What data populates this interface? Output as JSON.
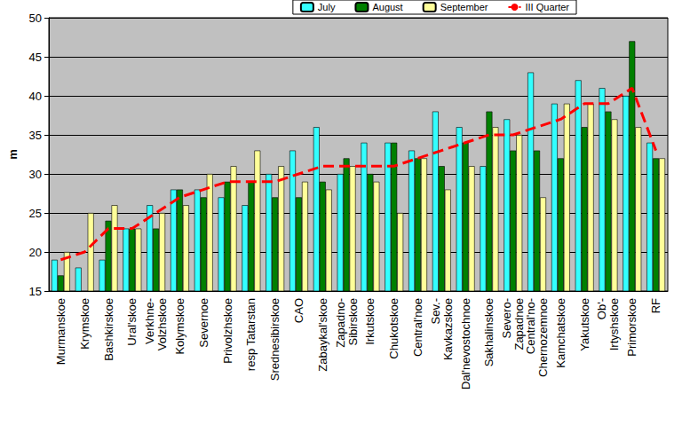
{
  "chart_data": {
    "type": "bar",
    "y_label": "m",
    "categories": [
      "Murmanskoe",
      "Krymskoe",
      "Bashkirskoe",
      "Ural'skoe",
      "Verkhne-\nVolzhskoe",
      "Kolymskoe",
      "Severnoe",
      "Privolzhskoe",
      "resp Tatarstan",
      "Srednesibirskoe",
      "CAO",
      "Zabaykal'skoe",
      "Zapadno-\nSibirskoe",
      "Irkutskoe",
      "Chukotskoe",
      "Central'noe",
      "Sev.-\nKavkazskoe",
      "Dal'nevostochnoe",
      "Sakhalinskoe",
      "Severo-\nZapadnoe",
      "Central'no-\nChernozemnoe",
      "Kamchatskoe",
      "Yakutskoe",
      "Ob'-\nIrtyshskoe",
      "Primorskoe",
      "RF"
    ],
    "series": [
      {
        "name": "July",
        "type": "bar",
        "color": "#33ffff",
        "values": [
          19,
          18,
          19,
          23,
          26,
          28,
          28,
          27,
          26,
          30,
          33,
          36,
          30,
          34,
          34,
          33,
          38,
          36,
          31,
          37,
          43,
          39,
          42,
          41,
          40,
          34
        ]
      },
      {
        "name": "August",
        "type": "bar",
        "color": "#008000",
        "values": [
          17,
          null,
          24,
          23,
          23,
          28,
          27,
          29,
          29,
          27,
          27,
          29,
          32,
          30,
          34,
          32,
          31,
          34,
          38,
          33,
          33,
          32,
          36,
          38,
          47,
          32
        ]
      },
      {
        "name": "September",
        "type": "bar",
        "color": "#ffff99",
        "values": [
          20,
          25,
          26,
          23,
          25,
          26,
          30,
          31,
          33,
          31,
          29,
          28,
          31,
          29,
          25,
          32,
          28,
          31,
          36,
          35,
          27,
          39,
          39,
          37,
          36,
          32
        ]
      },
      {
        "name": "III Quarter",
        "type": "line",
        "color": "#ff0000",
        "line_style": "dashed",
        "marker": "none",
        "values": [
          19,
          20,
          23,
          23,
          25,
          27,
          28,
          29,
          29,
          29,
          30,
          31,
          31,
          31,
          31,
          32,
          33,
          34,
          35,
          35,
          36,
          37,
          39,
          39,
          41,
          33
        ]
      }
    ],
    "ylim": [
      15,
      50
    ],
    "yticks": [
      15,
      20,
      25,
      30,
      35,
      40,
      45,
      50
    ],
    "grid": true,
    "legend": "top"
  }
}
